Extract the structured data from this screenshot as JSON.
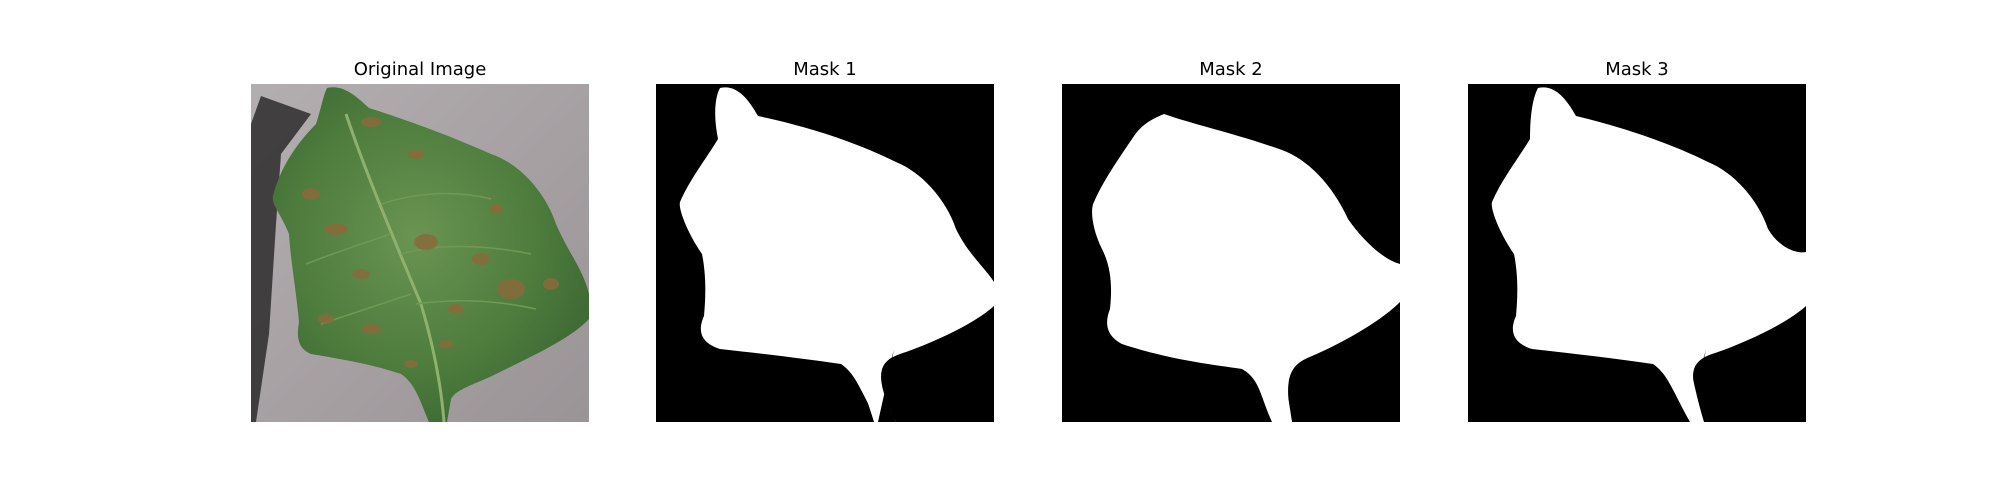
{
  "panels": [
    {
      "title": "Original Image"
    },
    {
      "title": "Mask 1"
    },
    {
      "title": "Mask 2"
    },
    {
      "title": "Mask 3"
    }
  ],
  "colors": {
    "background": "#ffffff",
    "mask_background": "#000000",
    "mask_foreground": "#ffffff",
    "leaf_green": "#4d7c3d",
    "leaf_spot": "#8a6a3c",
    "surface_gray": "#a59fa2"
  }
}
